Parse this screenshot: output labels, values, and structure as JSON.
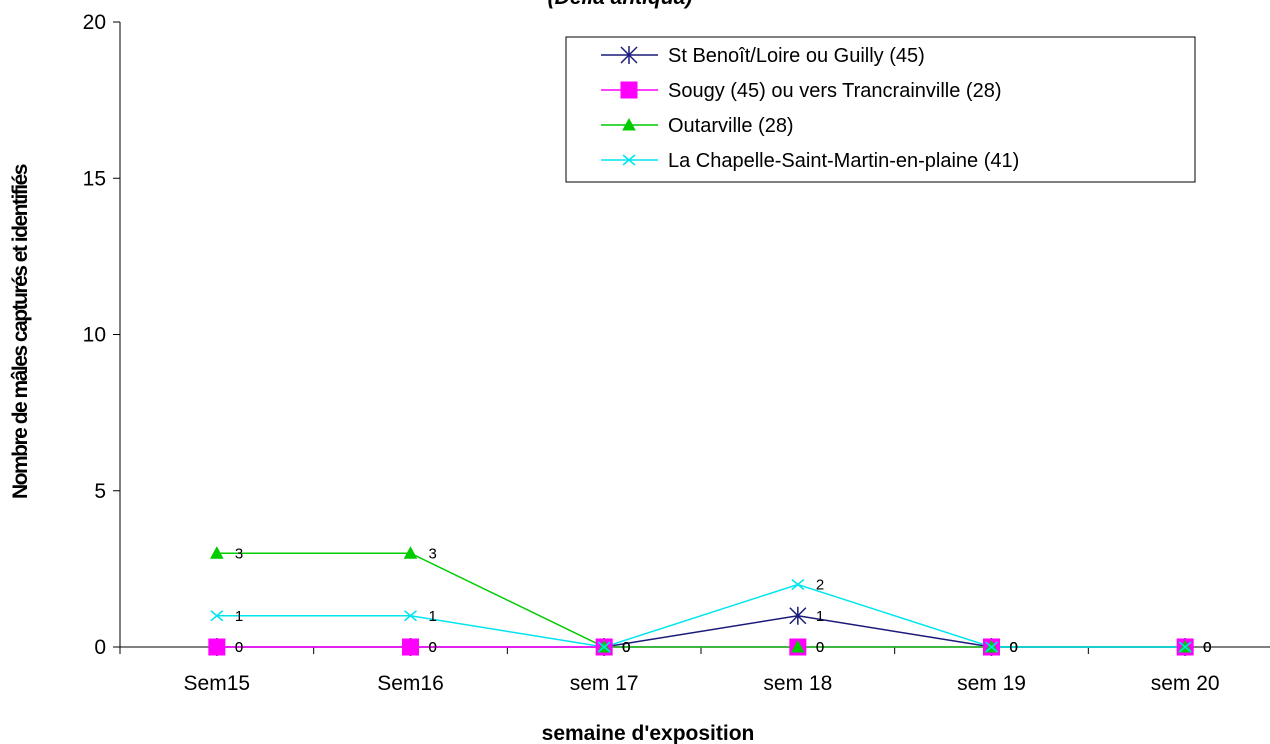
{
  "chart_data": {
    "type": "line",
    "title": "(Delia antiqua)",
    "xlabel": "semaine d'exposition",
    "ylabel": "Nombre de mâles capturés et identifiés",
    "categories": [
      "Sem15",
      "Sem16",
      "sem 17",
      "sem 18",
      "sem 19",
      "sem 20"
    ],
    "ylim": [
      0,
      20
    ],
    "yticks": [
      0,
      5,
      10,
      15,
      20
    ],
    "grid": false,
    "legend_position": "top-right",
    "series": [
      {
        "name": "St Benoît/Loire ou Guilly (45)",
        "values": [
          0,
          0,
          0,
          1,
          0,
          0
        ],
        "color": "#1a1a7a",
        "marker": "asterisk"
      },
      {
        "name": "Sougy (45) ou vers Trancrainville (28)",
        "values": [
          0,
          0,
          0,
          0,
          0,
          0
        ],
        "color": "#ff00ff",
        "marker": "square"
      },
      {
        "name": "Outarville (28)",
        "values": [
          3,
          3,
          0,
          0,
          0,
          0
        ],
        "color": "#00cc00",
        "marker": "triangle"
      },
      {
        "name": "La Chapelle-Saint-Martin-en-plaine  (41)",
        "values": [
          1,
          1,
          0,
          2,
          0,
          0
        ],
        "color": "#00e5ee",
        "marker": "cross"
      }
    ]
  }
}
